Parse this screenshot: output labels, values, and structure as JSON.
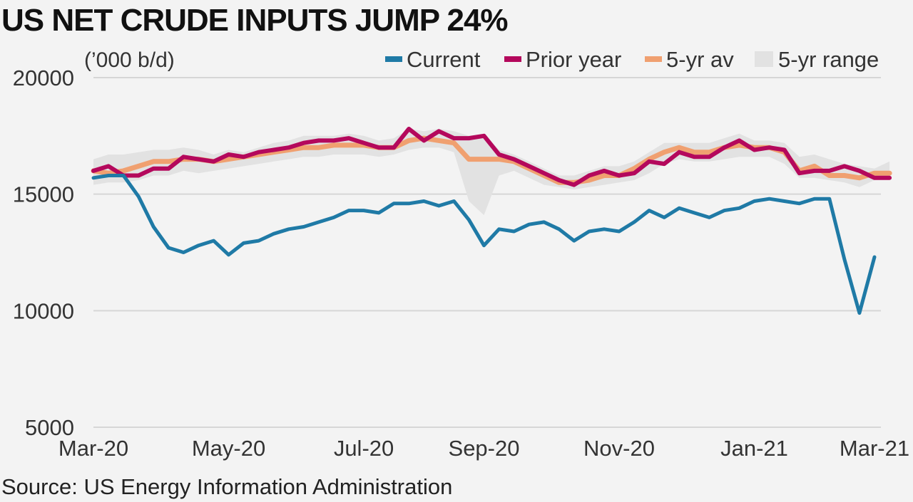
{
  "title": "US NET CRUDE INPUTS JUMP 24%",
  "source": "Source: US Energy Information Administration",
  "colors": {
    "current": "#1f7aa6",
    "prior_year": "#b4085c",
    "avg": "#f0a070",
    "range": "#e2e2e2",
    "grid": "#d6d6d6",
    "background": "#f3f3f3"
  },
  "chart_data": {
    "type": "line",
    "unit_label": "(’000 b/d)",
    "title": "US NET CRUDE INPUTS JUMP 24%",
    "xlabel": "",
    "ylabel": "",
    "ylim": [
      5000,
      20000
    ],
    "yticks": [
      5000,
      10000,
      15000,
      20000
    ],
    "xticks": [
      {
        "label": "Mar-20",
        "week": 0
      },
      {
        "label": "May-20",
        "week": 9
      },
      {
        "label": "Jul-20",
        "week": 18
      },
      {
        "label": "Sep-20",
        "week": 26
      },
      {
        "label": "Nov-20",
        "week": 35
      },
      {
        "label": "Jan-21",
        "week": 44
      },
      {
        "label": "Mar-21",
        "week": 52
      }
    ],
    "grid": "horizontal",
    "legend": "top-right",
    "legend_entries": [
      {
        "key": "current",
        "label": "Current",
        "kind": "line"
      },
      {
        "key": "prior_year",
        "label": "Prior year",
        "kind": "line"
      },
      {
        "key": "avg",
        "label": "5-yr av",
        "kind": "line"
      },
      {
        "key": "range",
        "label": "5-yr range",
        "kind": "area"
      }
    ],
    "series": [
      {
        "key": "current",
        "name": "Current",
        "values": [
          15700,
          15800,
          15800,
          14900,
          13600,
          12700,
          12500,
          12800,
          13000,
          12400,
          12900,
          13000,
          13300,
          13500,
          13600,
          13800,
          14000,
          14300,
          14300,
          14200,
          14600,
          14600,
          14700,
          14500,
          14700,
          13900,
          12800,
          13500,
          13400,
          13700,
          13800,
          13500,
          13000,
          13400,
          13500,
          13400,
          13800,
          14300,
          14000,
          14400,
          14200,
          14000,
          14300,
          14400,
          14700,
          14800,
          14700,
          14600,
          14800,
          14800,
          12200,
          9900,
          12300
        ]
      },
      {
        "key": "prior_year",
        "name": "Prior year",
        "values": [
          16000,
          16200,
          15800,
          15800,
          16100,
          16100,
          16600,
          16500,
          16400,
          16700,
          16600,
          16800,
          16900,
          17000,
          17200,
          17300,
          17300,
          17400,
          17200,
          17000,
          17000,
          17800,
          17300,
          17700,
          17400,
          17400,
          17500,
          16700,
          16500,
          16200,
          15900,
          15600,
          15400,
          15800,
          16000,
          15800,
          15900,
          16400,
          16300,
          16800,
          16600,
          16600,
          17000,
          17300,
          16900,
          17000,
          16900,
          15900,
          16000,
          16000,
          16200,
          16000,
          15700,
          15700
        ]
      },
      {
        "key": "avg",
        "name": "5-yr av",
        "values": [
          16000,
          15900,
          16000,
          16200,
          16400,
          16400,
          16500,
          16500,
          16400,
          16500,
          16600,
          16700,
          16800,
          16900,
          17000,
          17000,
          17100,
          17100,
          17100,
          17000,
          17000,
          17300,
          17400,
          17300,
          17200,
          16500,
          16500,
          16500,
          16400,
          16100,
          15800,
          15500,
          15500,
          15600,
          15800,
          15800,
          16100,
          16500,
          16800,
          17000,
          16800,
          16800,
          17000,
          17100,
          17000,
          17000,
          16800,
          16000,
          16200,
          15800,
          15800,
          15700,
          15900,
          15900
        ]
      },
      {
        "key": "range",
        "name": "5-yr range",
        "type": "area",
        "lower": [
          15400,
          15500,
          15500,
          15600,
          15800,
          15800,
          16000,
          15900,
          16000,
          16100,
          16200,
          16300,
          16400,
          16500,
          16600,
          16600,
          16700,
          16700,
          16700,
          16600,
          16700,
          16900,
          17000,
          17000,
          16800,
          14700,
          14100,
          15800,
          16000,
          15700,
          15400,
          15300,
          15200,
          15300,
          15400,
          15500,
          15600,
          15900,
          16300,
          16500,
          16400,
          16400,
          16500,
          16600,
          16600,
          16600,
          16300,
          15700,
          15700,
          15600,
          15500,
          15300,
          15600,
          15600
        ],
        "upper": [
          16500,
          16700,
          16700,
          16800,
          16900,
          16900,
          17000,
          16900,
          16700,
          16900,
          16800,
          17000,
          17200,
          17300,
          17500,
          17500,
          17500,
          17600,
          17500,
          17300,
          17400,
          17800,
          17700,
          17800,
          17700,
          17500,
          17600,
          16900,
          16700,
          16400,
          16100,
          15800,
          15800,
          16000,
          16200,
          16200,
          16400,
          16800,
          17200,
          17200,
          17200,
          17200,
          17400,
          17600,
          17300,
          17300,
          17200,
          16600,
          16700,
          16500,
          16300,
          16200,
          16100,
          16400
        ]
      }
    ]
  }
}
